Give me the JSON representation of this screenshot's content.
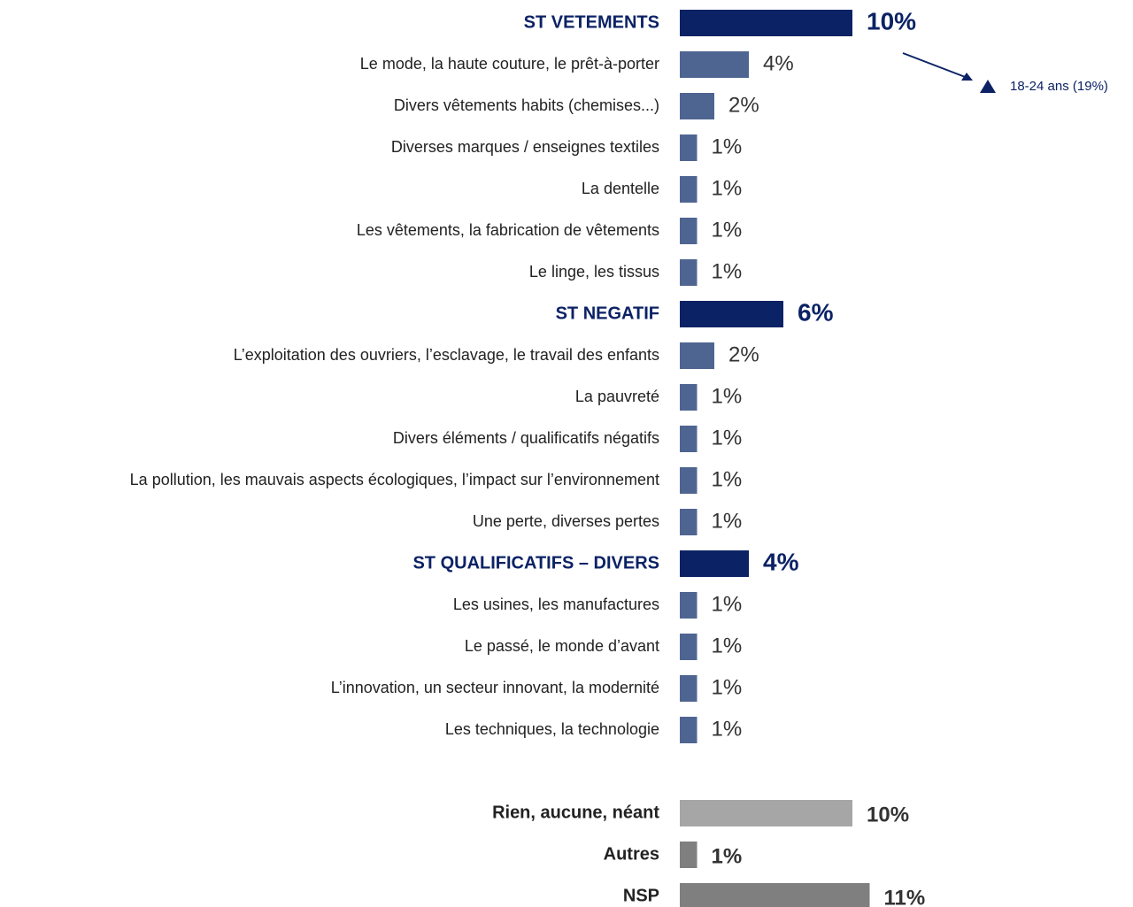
{
  "chart_data": {
    "type": "barh",
    "categories": [
      "ST VETEMENTS",
      "Le mode, la haute couture, le prêt-à-porter",
      "Divers vêtements habits (chemises...)",
      "Diverses marques / enseignes textiles",
      "La dentelle",
      "Les vêtements, la fabrication de vêtements",
      "Le linge, les tissus",
      "ST NEGATIF",
      "L’exploitation des ouvriers, l’esclavage, le travail des enfants",
      "La pauvreté",
      "Divers éléments / qualificatifs négatifs",
      "La pollution, les mauvais aspects écologiques, l’impact sur l’environnement",
      "Une perte, diverses pertes",
      "ST QUALIFICATIFS – DIVERS",
      "Les usines, les manufactures",
      "Le passé, le monde d’avant",
      "L’innovation, un secteur innovant, la modernité",
      "Les techniques, la technologie",
      "Rien, aucune, néant",
      "Autres",
      "NSP"
    ],
    "values": [
      10,
      4,
      2,
      1,
      1,
      1,
      1,
      6,
      2,
      1,
      1,
      1,
      1,
      4,
      1,
      1,
      1,
      1,
      10,
      1,
      11
    ],
    "value_labels": [
      "10%",
      "4%",
      "2%",
      "1%",
      "1%",
      "1%",
      "1%",
      "6%",
      "2%",
      "1%",
      "1%",
      "1%",
      "1%",
      "4%",
      "1%",
      "1%",
      "1%",
      "1%",
      "10%",
      "1%",
      "11%"
    ],
    "colors": [
      "#0b2265",
      "#4f6591",
      "#4f6591",
      "#4f6591",
      "#4f6591",
      "#4f6591",
      "#4f6591",
      "#0b2265",
      "#4f6591",
      "#4f6591",
      "#4f6591",
      "#4f6591",
      "#4f6591",
      "#0b2265",
      "#4f6591",
      "#4f6591",
      "#4f6591",
      "#4f6591",
      "#a6a6a6",
      "#7f7f7f",
      "#7f7f7f"
    ],
    "xlim": [
      0,
      25
    ],
    "annotations": [
      "18-24 ans (19%)"
    ]
  }
}
